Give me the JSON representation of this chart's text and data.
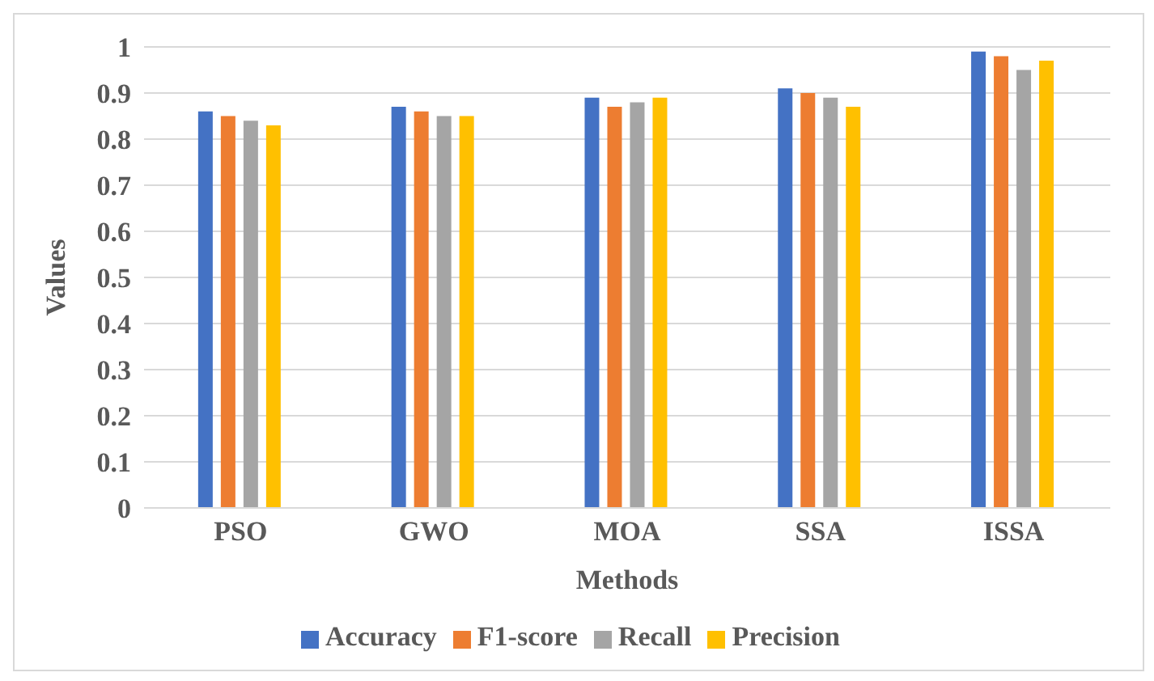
{
  "chart_data": {
    "type": "bar",
    "xlabel": "Methods",
    "ylabel": "Values",
    "categories": [
      "PSO",
      "GWO",
      "MOA",
      "SSA",
      "ISSA"
    ],
    "series": [
      {
        "name": "Accuracy",
        "color": "#4472c4",
        "values": [
          0.86,
          0.87,
          0.89,
          0.91,
          0.99
        ]
      },
      {
        "name": "F1-score",
        "color": "#ed7d31",
        "values": [
          0.85,
          0.86,
          0.87,
          0.9,
          0.98
        ]
      },
      {
        "name": "Recall",
        "color": "#a5a5a5",
        "values": [
          0.84,
          0.85,
          0.88,
          0.89,
          0.95
        ]
      },
      {
        "name": "Precision",
        "color": "#ffc000",
        "values": [
          0.83,
          0.85,
          0.89,
          0.87,
          0.97
        ]
      }
    ],
    "ylim": [
      0,
      1
    ],
    "yticks": [
      0,
      0.1,
      0.2,
      0.3,
      0.4,
      0.5,
      0.6,
      0.7,
      0.8,
      0.9,
      1
    ],
    "grid": "y",
    "legend": "bottom"
  }
}
